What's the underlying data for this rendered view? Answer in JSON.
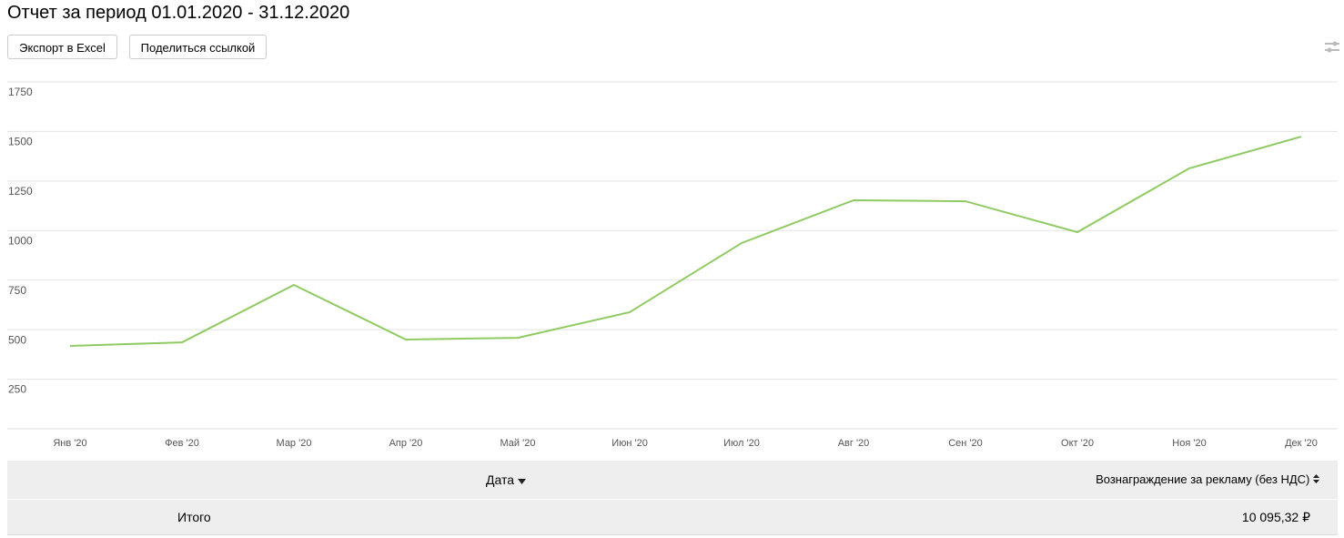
{
  "header": {
    "title": "Отчет за период 01.01.2020 - 31.12.2020",
    "buttons": [
      "Экспорт в Excel",
      "Поделиться ссылкой"
    ]
  },
  "chart_data": {
    "type": "line",
    "categories": [
      "Янв '20",
      "Фев '20",
      "Мар '20",
      "Апр '20",
      "Май '20",
      "Июн '20",
      "Июл '20",
      "Авг '20",
      "Сен '20",
      "Окт '20",
      "Ноя '20",
      "Дек '20"
    ],
    "values": [
      418,
      436,
      726,
      450,
      459,
      588,
      937,
      1153,
      1148,
      992,
      1314,
      1474
    ],
    "color": "#8fca63",
    "ylim": [
      0,
      1750
    ],
    "yticks": [
      250,
      500,
      750,
      1000,
      1250,
      1500,
      1750
    ],
    "grid": true
  },
  "table": {
    "columns": [
      "Дата",
      "Вознаграждение за рекламу (без НДС)"
    ],
    "total": [
      "Итого",
      "10 095,32 ₽"
    ]
  }
}
